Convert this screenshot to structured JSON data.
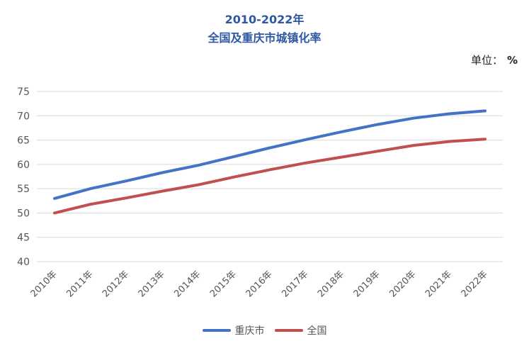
{
  "chart_data": {
    "type": "line",
    "title": "2010-2022年",
    "subtitle": "全国及重庆市城镇化率",
    "unit_label": "单位：",
    "unit_value": "%",
    "categories": [
      "2010年",
      "2011年",
      "2012年",
      "2013年",
      "2014年",
      "2015年",
      "2016年",
      "2017年",
      "2018年",
      "2019年",
      "2020年",
      "2021年",
      "2022年"
    ],
    "ylim": [
      40,
      75
    ],
    "yticks": [
      40,
      45,
      50,
      55,
      60,
      65,
      70,
      75
    ],
    "grid": true,
    "legend_position": "bottom",
    "series": [
      {
        "name": "重庆市",
        "color": "#4472C4",
        "values": [
          53.0,
          55.0,
          56.6,
          58.3,
          59.8,
          61.6,
          63.4,
          65.1,
          66.7,
          68.2,
          69.5,
          70.4,
          71.0
        ]
      },
      {
        "name": "全国",
        "color": "#C0504D",
        "values": [
          50.0,
          51.8,
          53.1,
          54.5,
          55.8,
          57.4,
          58.9,
          60.3,
          61.5,
          62.7,
          63.9,
          64.7,
          65.2
        ]
      }
    ]
  }
}
